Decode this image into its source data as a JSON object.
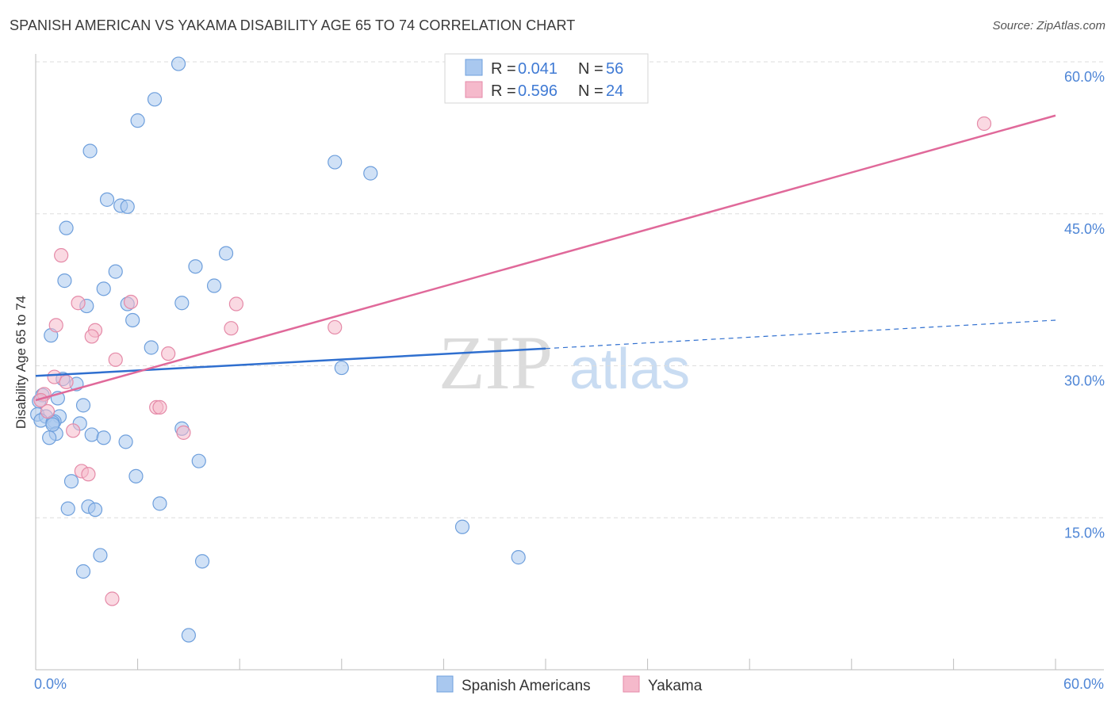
{
  "title": "SPANISH AMERICAN VS YAKAMA DISABILITY AGE 65 TO 74 CORRELATION CHART",
  "source": "Source: ZipAtlas.com",
  "watermark": {
    "zip": "ZIP",
    "atlas": "atlas"
  },
  "colors": {
    "blue_fill": "#a9c8ef",
    "blue_stroke": "#6e9fdc",
    "blue_line": "#2f6fcf",
    "pink_fill": "#f5b9cb",
    "pink_stroke": "#e58aa8",
    "pink_line": "#e0699a",
    "tick_text": "#4f86d6",
    "grid": "#dddddd"
  },
  "legend": {
    "rows": [
      {
        "r_label": "R =",
        "r_value": "0.041",
        "n_label": "N =",
        "n_value": "56"
      },
      {
        "r_label": "R =",
        "r_value": "0.596",
        "n_label": "N =",
        "n_value": "24"
      }
    ]
  },
  "bottom_legend": [
    "Spanish Americans",
    "Yakama"
  ],
  "chart_data": {
    "type": "scatter",
    "title": "SPANISH AMERICAN VS YAKAMA DISABILITY AGE 65 TO 74 CORRELATION CHART",
    "xlabel": "",
    "ylabel": "Disability Age 65 to 74",
    "xlim": [
      0,
      60
    ],
    "ylim": [
      0,
      60
    ],
    "x_tick_labels": [
      "0.0%",
      "60.0%"
    ],
    "y_ticks": [
      15,
      30,
      45,
      60
    ],
    "y_tick_labels": [
      "15.0%",
      "30.0%",
      "45.0%",
      "60.0%"
    ],
    "series": [
      {
        "name": "Spanish Americans",
        "R": 0.041,
        "N": 56,
        "trend": {
          "x0": 0,
          "y0": 29.0,
          "x1": 30,
          "y1": 31.7,
          "dash_x1": 60,
          "dash_y1": 34.5
        },
        "points": [
          [
            8.4,
            59.8
          ],
          [
            7.0,
            56.3
          ],
          [
            6.0,
            54.2
          ],
          [
            3.2,
            51.2
          ],
          [
            17.6,
            50.1
          ],
          [
            19.7,
            49.0
          ],
          [
            4.2,
            46.4
          ],
          [
            5.0,
            45.8
          ],
          [
            5.4,
            45.7
          ],
          [
            1.8,
            43.6
          ],
          [
            11.2,
            41.1
          ],
          [
            9.4,
            39.8
          ],
          [
            4.7,
            39.3
          ],
          [
            1.7,
            38.4
          ],
          [
            10.5,
            37.9
          ],
          [
            4.0,
            37.6
          ],
          [
            5.4,
            36.1
          ],
          [
            8.6,
            36.2
          ],
          [
            3.0,
            35.9
          ],
          [
            5.7,
            34.5
          ],
          [
            0.9,
            33.0
          ],
          [
            6.8,
            31.8
          ],
          [
            18.0,
            29.8
          ],
          [
            1.6,
            28.7
          ],
          [
            2.4,
            28.2
          ],
          [
            0.4,
            27.1
          ],
          [
            1.3,
            26.8
          ],
          [
            0.2,
            26.5
          ],
          [
            2.8,
            26.1
          ],
          [
            0.1,
            25.2
          ],
          [
            0.6,
            25.0
          ],
          [
            1.4,
            25.0
          ],
          [
            0.3,
            24.6
          ],
          [
            1.1,
            24.5
          ],
          [
            2.6,
            24.3
          ],
          [
            1.0,
            24.4
          ],
          [
            8.6,
            23.8
          ],
          [
            1.2,
            23.3
          ],
          [
            3.3,
            23.2
          ],
          [
            0.8,
            22.9
          ],
          [
            4.0,
            22.9
          ],
          [
            5.3,
            22.5
          ],
          [
            9.6,
            20.6
          ],
          [
            5.9,
            19.1
          ],
          [
            2.1,
            18.6
          ],
          [
            7.3,
            16.4
          ],
          [
            3.1,
            16.1
          ],
          [
            1.9,
            15.9
          ],
          [
            3.5,
            15.8
          ],
          [
            25.1,
            14.1
          ],
          [
            3.8,
            11.3
          ],
          [
            28.4,
            11.1
          ],
          [
            9.8,
            10.7
          ],
          [
            2.8,
            9.7
          ],
          [
            9.0,
            3.4
          ],
          [
            1.0,
            24.2
          ]
        ]
      },
      {
        "name": "Yakama",
        "R": 0.596,
        "N": 24,
        "trend": {
          "x0": 0,
          "y0": 26.6,
          "x1": 60,
          "y1": 54.7
        },
        "points": [
          [
            55.8,
            53.9
          ],
          [
            1.5,
            40.9
          ],
          [
            2.5,
            36.2
          ],
          [
            5.6,
            36.3
          ],
          [
            11.8,
            36.1
          ],
          [
            1.2,
            34.0
          ],
          [
            3.5,
            33.5
          ],
          [
            11.5,
            33.7
          ],
          [
            17.6,
            33.8
          ],
          [
            3.3,
            32.9
          ],
          [
            4.7,
            30.6
          ],
          [
            7.8,
            31.2
          ],
          [
            1.1,
            28.9
          ],
          [
            0.5,
            27.2
          ],
          [
            0.3,
            26.6
          ],
          [
            1.8,
            28.4
          ],
          [
            7.1,
            25.9
          ],
          [
            7.3,
            25.9
          ],
          [
            2.2,
            23.6
          ],
          [
            8.7,
            23.4
          ],
          [
            2.7,
            19.6
          ],
          [
            3.1,
            19.3
          ],
          [
            4.5,
            7.0
          ],
          [
            0.7,
            25.5
          ]
        ]
      }
    ]
  }
}
